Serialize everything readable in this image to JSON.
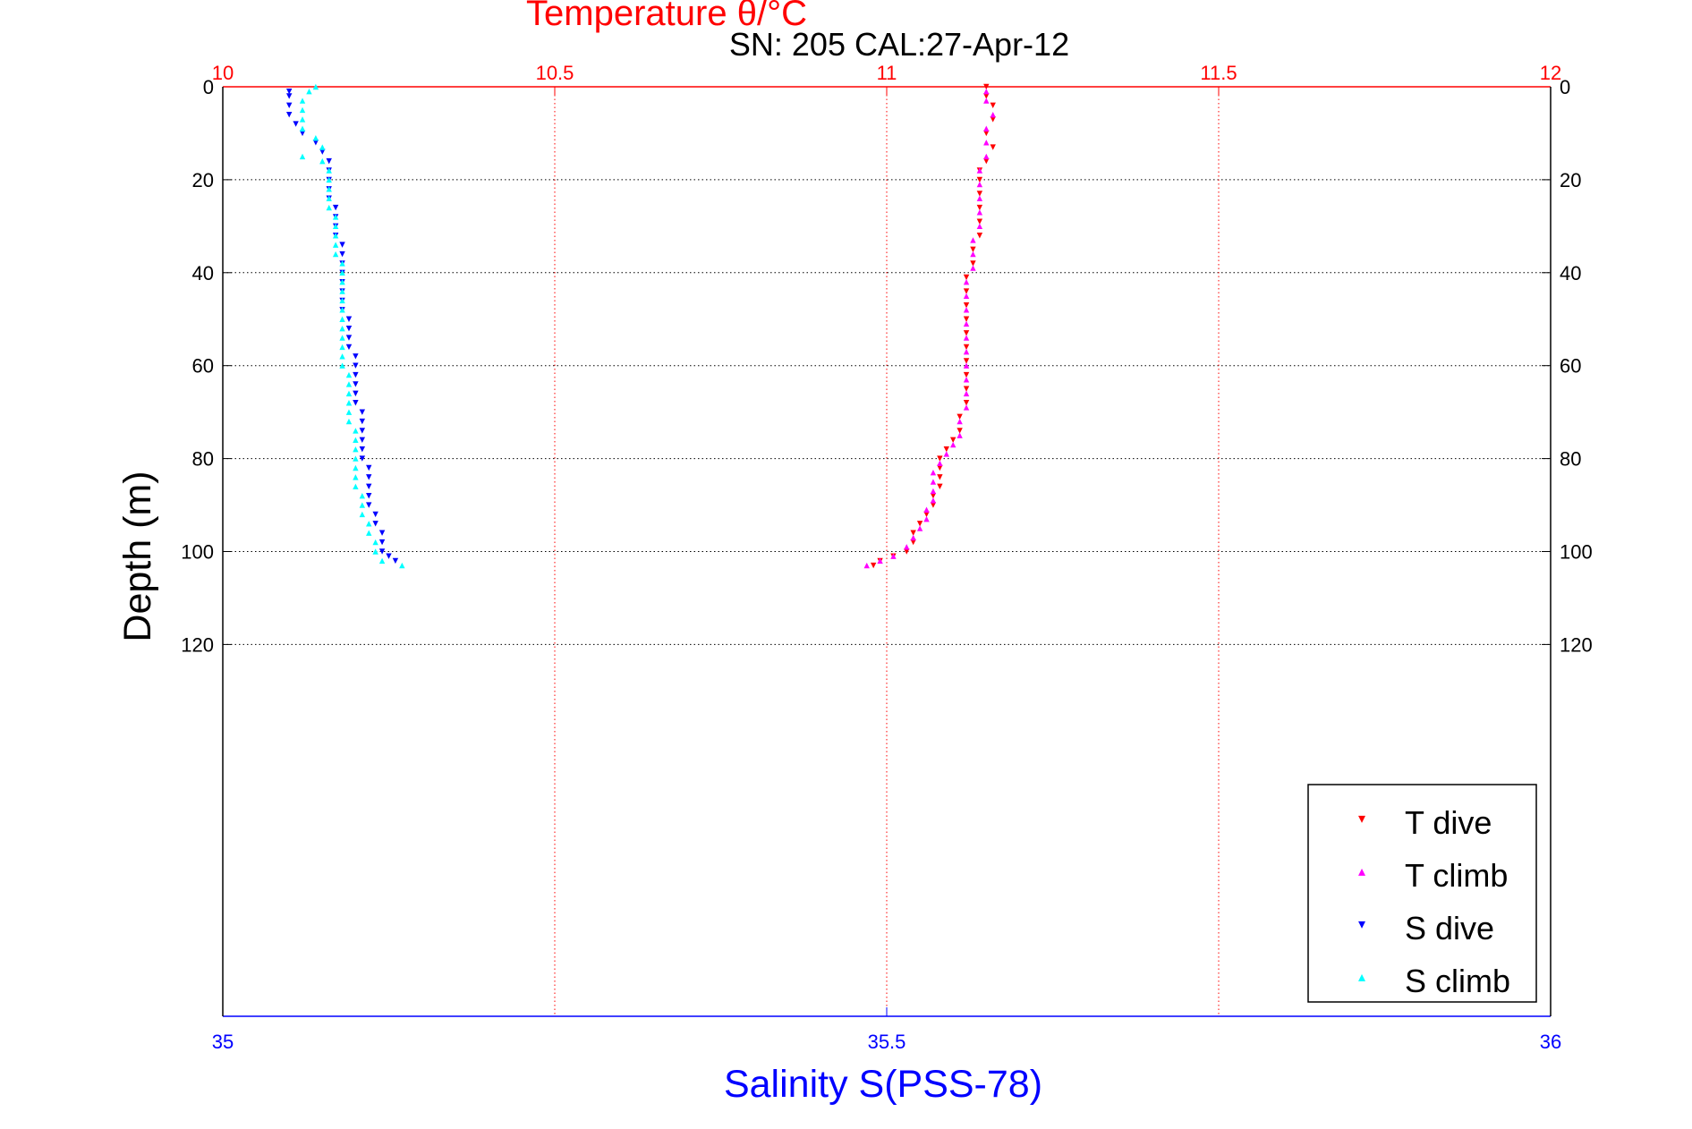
{
  "chart_data": {
    "type": "scatter",
    "title": "Temperature θ/°C",
    "subtitle": "SN: 205  CAL:27-Apr-12",
    "ylabel": "Depth (m)",
    "xlabel_bottom": "Salinity S(PSS-78)",
    "y_axis": {
      "reversed": true,
      "ylim": [
        0,
        200
      ],
      "ticks": [
        0,
        20,
        40,
        60,
        80,
        100,
        120
      ]
    },
    "x_top_axis": {
      "label": "Temperature θ/°C",
      "xlim": [
        10,
        12
      ],
      "ticks": [
        10,
        10.5,
        11,
        11.5,
        12
      ],
      "tick_labels": [
        "10",
        "10.5",
        "11",
        "11.5",
        "12"
      ],
      "color": "#ff0000",
      "grid": true
    },
    "x_bottom_axis": {
      "label": "Salinity S(PSS-78)",
      "xlim": [
        35,
        36
      ],
      "ticks": [
        35,
        35.5,
        36
      ],
      "tick_labels": [
        "35",
        "35.5",
        "36"
      ],
      "color": "#0000ff"
    },
    "grid": true,
    "legend": {
      "position": "bottom-right",
      "entries": [
        {
          "label": "T dive",
          "color": "#ff0000",
          "marker": "▾"
        },
        {
          "label": "T climb",
          "color": "#ff00ff",
          "marker": "▴"
        },
        {
          "label": "S dive",
          "color": "#0000ff",
          "marker": "▾"
        },
        {
          "label": "S climb",
          "color": "#00ffff",
          "marker": "▴"
        }
      ]
    },
    "series": [
      {
        "name": "T dive",
        "axis": "temperature",
        "color": "#ff0000",
        "marker": "tri-down",
        "points": [
          [
            11.15,
            0
          ],
          [
            11.15,
            2
          ],
          [
            11.16,
            4
          ],
          [
            11.16,
            7
          ],
          [
            11.15,
            10
          ],
          [
            11.16,
            13
          ],
          [
            11.15,
            16
          ],
          [
            11.14,
            18
          ],
          [
            11.14,
            20
          ],
          [
            11.14,
            23
          ],
          [
            11.14,
            26
          ],
          [
            11.14,
            29
          ],
          [
            11.14,
            32
          ],
          [
            11.13,
            35
          ],
          [
            11.13,
            38
          ],
          [
            11.12,
            41
          ],
          [
            11.12,
            44
          ],
          [
            11.12,
            47
          ],
          [
            11.12,
            50
          ],
          [
            11.12,
            53
          ],
          [
            11.12,
            56
          ],
          [
            11.12,
            59
          ],
          [
            11.12,
            62
          ],
          [
            11.12,
            65
          ],
          [
            11.12,
            68
          ],
          [
            11.11,
            71
          ],
          [
            11.11,
            74
          ],
          [
            11.1,
            76
          ],
          [
            11.09,
            78
          ],
          [
            11.08,
            80
          ],
          [
            11.08,
            82
          ],
          [
            11.08,
            84
          ],
          [
            11.08,
            86
          ],
          [
            11.07,
            88
          ],
          [
            11.07,
            90
          ],
          [
            11.06,
            92
          ],
          [
            11.05,
            94
          ],
          [
            11.04,
            96
          ],
          [
            11.04,
            98
          ],
          [
            11.03,
            100
          ],
          [
            11.01,
            101
          ],
          [
            10.99,
            102
          ],
          [
            10.98,
            103
          ]
        ]
      },
      {
        "name": "T climb",
        "axis": "temperature",
        "color": "#ff00ff",
        "marker": "tri-up",
        "points": [
          [
            10.97,
            103
          ],
          [
            10.99,
            102
          ],
          [
            11.01,
            101
          ],
          [
            11.03,
            99
          ],
          [
            11.04,
            97
          ],
          [
            11.05,
            95
          ],
          [
            11.06,
            93
          ],
          [
            11.06,
            91
          ],
          [
            11.07,
            89
          ],
          [
            11.07,
            87
          ],
          [
            11.07,
            85
          ],
          [
            11.07,
            83
          ],
          [
            11.08,
            81
          ],
          [
            11.09,
            79
          ],
          [
            11.1,
            77
          ],
          [
            11.11,
            75
          ],
          [
            11.11,
            72
          ],
          [
            11.12,
            69
          ],
          [
            11.12,
            66
          ],
          [
            11.12,
            63
          ],
          [
            11.12,
            60
          ],
          [
            11.12,
            57
          ],
          [
            11.12,
            54
          ],
          [
            11.12,
            51
          ],
          [
            11.12,
            48
          ],
          [
            11.12,
            45
          ],
          [
            11.12,
            42
          ],
          [
            11.13,
            39
          ],
          [
            11.13,
            36
          ],
          [
            11.13,
            33
          ],
          [
            11.14,
            30
          ],
          [
            11.14,
            27
          ],
          [
            11.14,
            24
          ],
          [
            11.14,
            21
          ],
          [
            11.14,
            18
          ],
          [
            11.15,
            15
          ],
          [
            11.15,
            12
          ],
          [
            11.15,
            9
          ],
          [
            11.16,
            6
          ],
          [
            11.15,
            3
          ],
          [
            11.15,
            1
          ]
        ]
      },
      {
        "name": "S dive",
        "axis": "salinity",
        "color": "#0000ff",
        "marker": "tri-down",
        "points": [
          [
            35.05,
            1
          ],
          [
            35.05,
            2
          ],
          [
            35.05,
            4
          ],
          [
            35.05,
            6
          ],
          [
            35.055,
            8
          ],
          [
            35.06,
            10
          ],
          [
            35.07,
            12
          ],
          [
            35.075,
            14
          ],
          [
            35.08,
            16
          ],
          [
            35.08,
            18
          ],
          [
            35.08,
            20
          ],
          [
            35.08,
            22
          ],
          [
            35.08,
            24
          ],
          [
            35.085,
            26
          ],
          [
            35.085,
            28
          ],
          [
            35.085,
            30
          ],
          [
            35.085,
            32
          ],
          [
            35.09,
            34
          ],
          [
            35.09,
            36
          ],
          [
            35.09,
            38
          ],
          [
            35.09,
            40
          ],
          [
            35.09,
            42
          ],
          [
            35.09,
            44
          ],
          [
            35.09,
            46
          ],
          [
            35.09,
            48
          ],
          [
            35.095,
            50
          ],
          [
            35.095,
            52
          ],
          [
            35.095,
            54
          ],
          [
            35.095,
            56
          ],
          [
            35.1,
            58
          ],
          [
            35.1,
            60
          ],
          [
            35.1,
            62
          ],
          [
            35.1,
            64
          ],
          [
            35.1,
            66
          ],
          [
            35.1,
            68
          ],
          [
            35.105,
            70
          ],
          [
            35.105,
            72
          ],
          [
            35.105,
            74
          ],
          [
            35.105,
            76
          ],
          [
            35.105,
            78
          ],
          [
            35.105,
            80
          ],
          [
            35.11,
            82
          ],
          [
            35.11,
            84
          ],
          [
            35.11,
            86
          ],
          [
            35.11,
            88
          ],
          [
            35.11,
            90
          ],
          [
            35.115,
            92
          ],
          [
            35.115,
            94
          ],
          [
            35.12,
            96
          ],
          [
            35.12,
            98
          ],
          [
            35.12,
            100
          ],
          [
            35.125,
            101
          ],
          [
            35.13,
            102
          ]
        ]
      },
      {
        "name": "S climb",
        "axis": "salinity",
        "color": "#00ffff",
        "marker": "tri-up",
        "points": [
          [
            35.135,
            103
          ],
          [
            35.12,
            102
          ],
          [
            35.115,
            100
          ],
          [
            35.115,
            98
          ],
          [
            35.11,
            96
          ],
          [
            35.11,
            94
          ],
          [
            35.105,
            92
          ],
          [
            35.105,
            90
          ],
          [
            35.105,
            88
          ],
          [
            35.1,
            86
          ],
          [
            35.1,
            84
          ],
          [
            35.1,
            82
          ],
          [
            35.1,
            80
          ],
          [
            35.1,
            78
          ],
          [
            35.1,
            76
          ],
          [
            35.1,
            74
          ],
          [
            35.095,
            72
          ],
          [
            35.095,
            70
          ],
          [
            35.095,
            68
          ],
          [
            35.095,
            66
          ],
          [
            35.095,
            64
          ],
          [
            35.095,
            62
          ],
          [
            35.09,
            60
          ],
          [
            35.09,
            58
          ],
          [
            35.09,
            56
          ],
          [
            35.09,
            54
          ],
          [
            35.09,
            52
          ],
          [
            35.09,
            50
          ],
          [
            35.09,
            48
          ],
          [
            35.09,
            46
          ],
          [
            35.09,
            44
          ],
          [
            35.09,
            42
          ],
          [
            35.09,
            40
          ],
          [
            35.09,
            38
          ],
          [
            35.085,
            36
          ],
          [
            35.085,
            34
          ],
          [
            35.085,
            32
          ],
          [
            35.085,
            30
          ],
          [
            35.085,
            28
          ],
          [
            35.08,
            26
          ],
          [
            35.08,
            24
          ],
          [
            35.08,
            22
          ],
          [
            35.08,
            20
          ],
          [
            35.08,
            18
          ],
          [
            35.075,
            16
          ],
          [
            35.06,
            15
          ],
          [
            35.075,
            13
          ],
          [
            35.07,
            11
          ],
          [
            35.06,
            9
          ],
          [
            35.06,
            7
          ],
          [
            35.06,
            5
          ],
          [
            35.06,
            3
          ],
          [
            35.065,
            1
          ],
          [
            35.07,
            0
          ]
        ]
      }
    ]
  }
}
